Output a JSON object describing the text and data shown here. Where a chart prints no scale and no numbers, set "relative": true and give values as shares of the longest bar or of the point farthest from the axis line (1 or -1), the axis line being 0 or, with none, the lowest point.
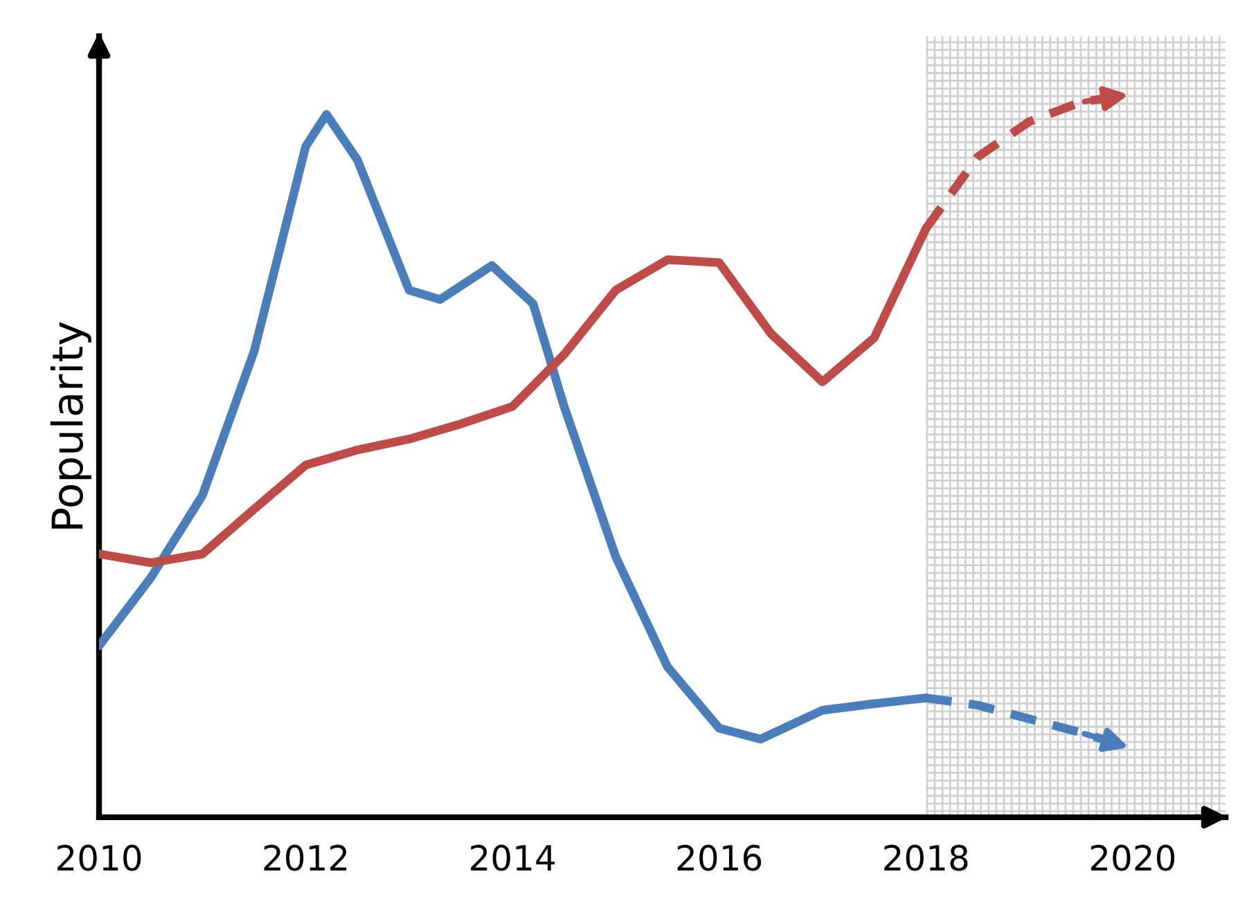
{
  "chart_data": {
    "type": "line",
    "relative": true,
    "ylabel": "Popularity",
    "xlim": [
      2010,
      2020.9
    ],
    "xticks": [
      2010,
      2012,
      2014,
      2016,
      2018,
      2020
    ],
    "grid": false,
    "legend": false,
    "line_style": "solid",
    "marker": "none",
    "bands": [
      {
        "axis": "x",
        "from": 2018,
        "to": 2020.9,
        "color": "#d0d0d0"
      }
    ],
    "series": [
      {
        "color": "#4a7ebb",
        "x": [
          2010,
          2010.5,
          2011,
          2011.5,
          2012,
          2012.2,
          2012.5,
          2013,
          2013.3,
          2013.8,
          2014.2,
          2014.5,
          2015,
          2015.5,
          2016,
          2016.4,
          2017,
          2017.5,
          2018
        ],
        "values": [
          0.237,
          0.331,
          0.445,
          0.644,
          0.928,
          0.972,
          0.909,
          0.729,
          0.716,
          0.763,
          0.71,
          0.568,
          0.36,
          0.208,
          0.123,
          0.108,
          0.148,
          0.157,
          0.165
        ]
      },
      {
        "color": "#be4b48",
        "x": [
          2010,
          2010.5,
          2011,
          2011.5,
          2012,
          2012.5,
          2013,
          2013.5,
          2014,
          2014.5,
          2015,
          2015.5,
          2016,
          2016.5,
          2017,
          2017.5,
          2018
        ],
        "values": [
          0.364,
          0.352,
          0.364,
          0.426,
          0.487,
          0.508,
          0.523,
          0.544,
          0.568,
          0.64,
          0.729,
          0.771,
          0.767,
          0.669,
          0.602,
          0.663,
          0.814
        ]
      },
      {
        "color": "#4a7ebb",
        "line_style": "dashed",
        "x": [
          2018,
          2018.5,
          2019,
          2019.5,
          2020
        ],
        "values": [
          0.165,
          0.155,
          0.136,
          0.117,
          0.095
        ]
      },
      {
        "color": "#be4b48",
        "line_style": "dashed",
        "x": [
          2018,
          2018.5,
          2019,
          2019.5,
          2020
        ],
        "values": [
          0.814,
          0.913,
          0.962,
          0.989,
          1
        ]
      }
    ]
  }
}
